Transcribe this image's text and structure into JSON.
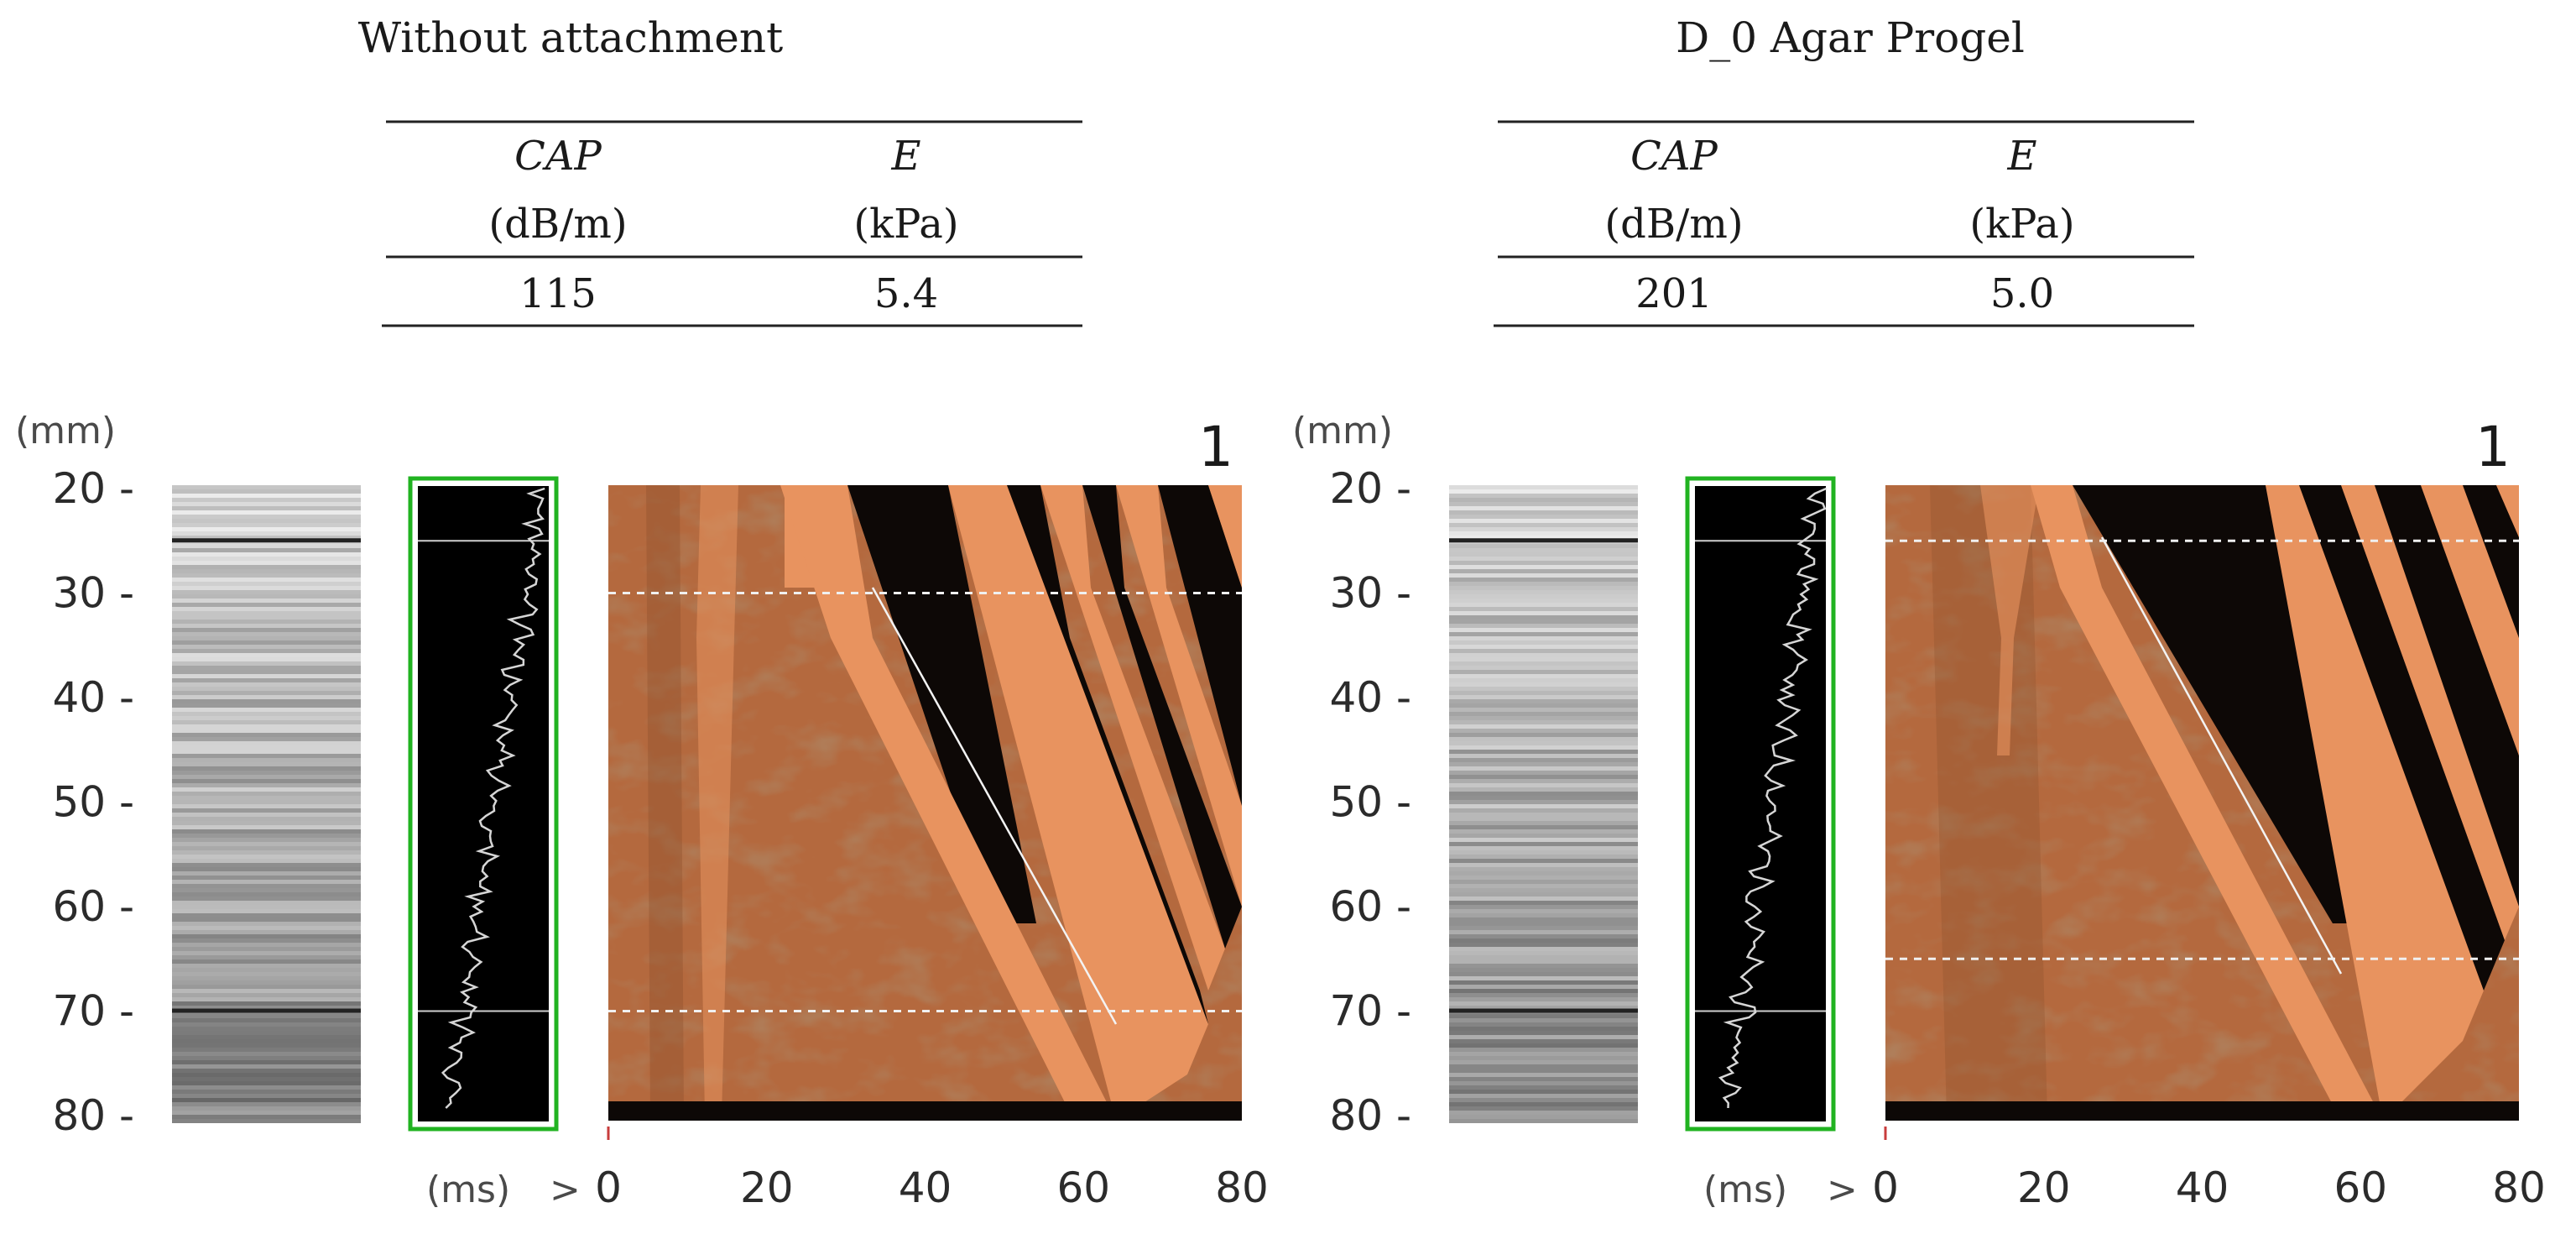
{
  "panels": [
    {
      "title": "Without attachment",
      "table": {
        "headers": [
          {
            "name": "CAP",
            "unit": "(dB/m)"
          },
          {
            "name": "E",
            "unit": "(kPa)"
          }
        ],
        "values": [
          "115",
          "5.4"
        ]
      },
      "depth_unit": "(mm)",
      "depth_ticks": [
        "20",
        "30",
        "40",
        "50",
        "60",
        "70",
        "80"
      ],
      "time_unit": "(ms)",
      "time_arrow": ">",
      "time_ticks": [
        "0",
        "20",
        "40",
        "60",
        "80"
      ],
      "panel_number": "1",
      "roi_depth_mm": [
        30,
        70
      ],
      "reference_depth_mm": [
        25,
        70
      ]
    },
    {
      "title": "D_0 Agar Progel",
      "table": {
        "headers": [
          {
            "name": "CAP",
            "unit": "(dB/m)"
          },
          {
            "name": "E",
            "unit": "(kPa)"
          }
        ],
        "values": [
          "201",
          "5.0"
        ]
      },
      "depth_unit": "(mm)",
      "depth_ticks": [
        "20",
        "30",
        "40",
        "50",
        "60",
        "70",
        "80"
      ],
      "time_unit": "(ms)",
      "time_arrow": ">",
      "time_ticks": [
        "0",
        "20",
        "40",
        "60",
        "80"
      ],
      "panel_number": "1",
      "roi_depth_mm": [
        25,
        65
      ],
      "reference_depth_mm": [
        25,
        70
      ]
    }
  ],
  "colors": {
    "elastogram_light": "#e8935f",
    "elastogram_dark": "#0d0806",
    "elastogram_mid": "#b4693e",
    "frame_green": "#21b321",
    "trace": "#d6d6d6"
  }
}
